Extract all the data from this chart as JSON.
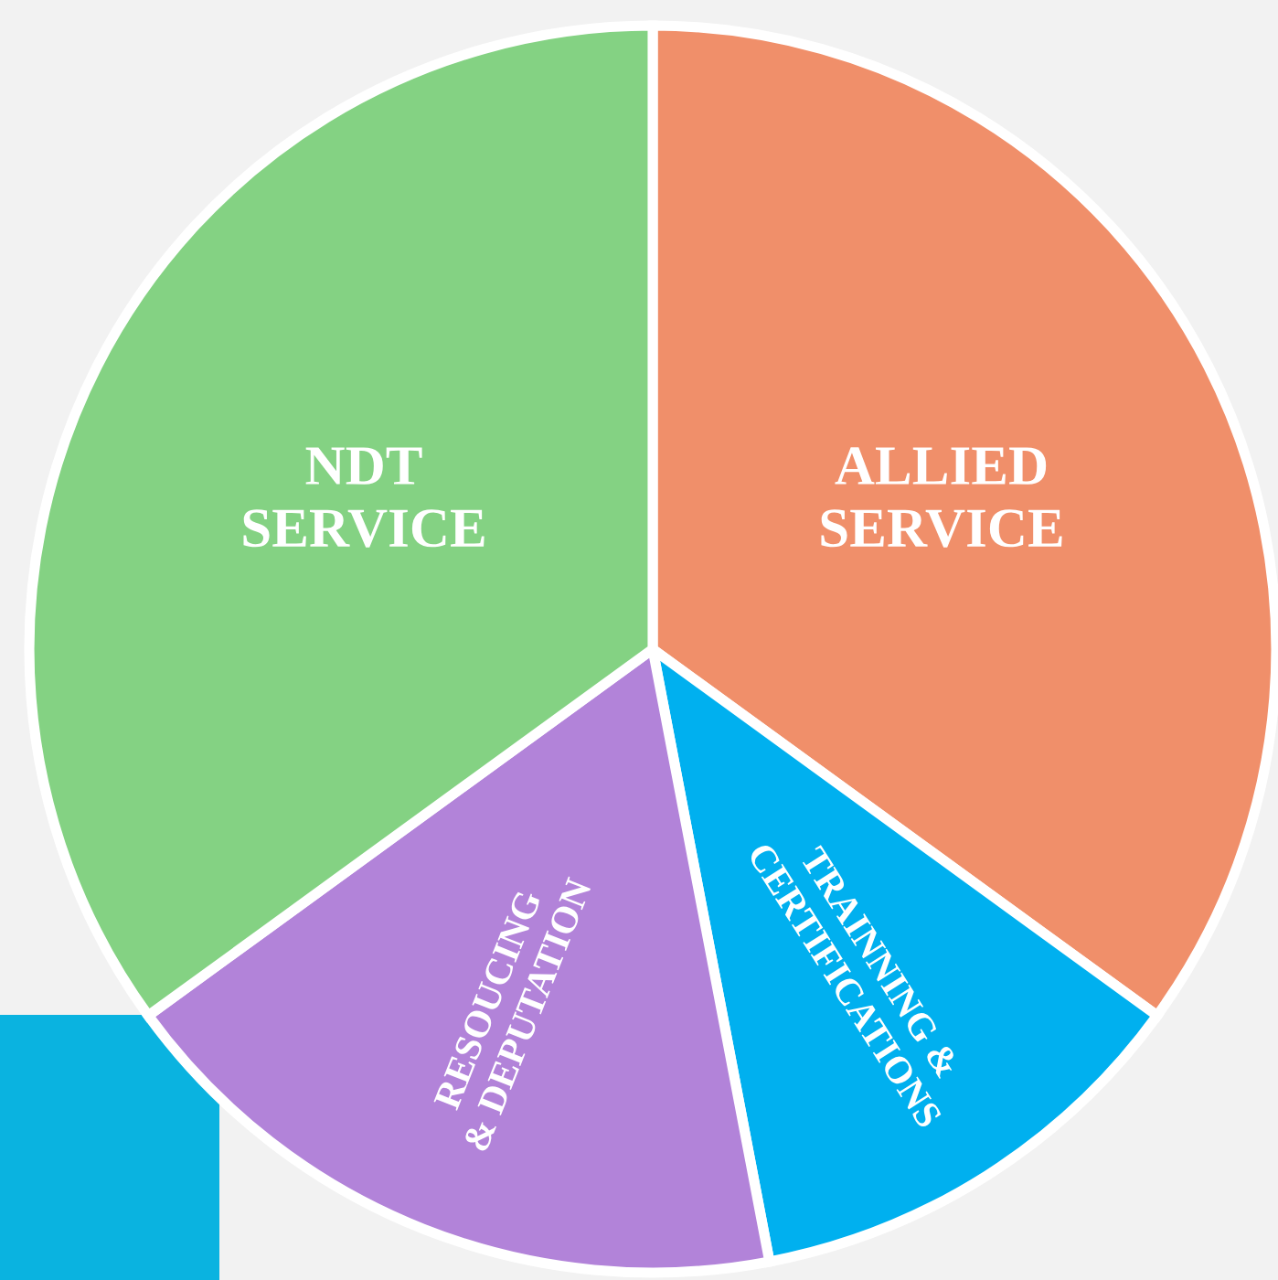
{
  "chart_data": {
    "type": "pie",
    "categories": [
      "ALLIED\nSERVICE",
      "TRAINNING &\nCERTIFICATIONS",
      "RESOUCING\n& DEPUTATION",
      "NDT\nSERVICE"
    ],
    "values": [
      35,
      12,
      18,
      35
    ],
    "colors": [
      "#f08f6a",
      "#00b0ef",
      "#b283d9",
      "#84d283"
    ]
  }
}
